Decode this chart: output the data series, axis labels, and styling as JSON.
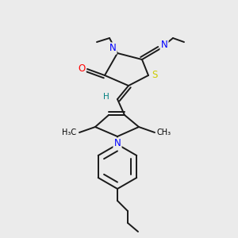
{
  "bg_color": "#ebebeb",
  "atom_colors": {
    "N": "#0000ff",
    "O": "#ff0000",
    "S": "#cccc00",
    "H": "#008080",
    "C": "#000000"
  },
  "bond_color": "#1a1a1a",
  "lw": 1.4,
  "fs": 8.5
}
